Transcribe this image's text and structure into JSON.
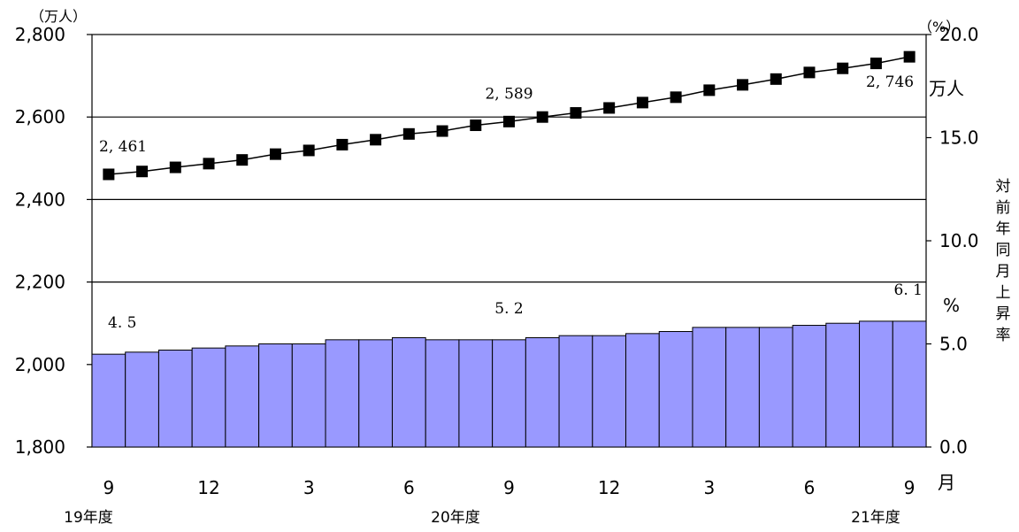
{
  "chart_data": {
    "type": "bar+line",
    "x_labels": [
      "9",
      "12",
      "3",
      "6",
      "9",
      "12",
      "3",
      "6",
      "9"
    ],
    "x_unit": "月",
    "fiscal_year_labels": [
      "19年度",
      "20年度",
      "21年度"
    ],
    "left_axis": {
      "unit": "（万人）",
      "ticks": [
        "1,800",
        "2,000",
        "2,200",
        "2,400",
        "2,600",
        "2,800"
      ],
      "range": [
        1800,
        2800
      ]
    },
    "right_axis": {
      "unit": "（%）",
      "ticks": [
        "0.0",
        "5.0",
        "10.0",
        "15.0",
        "20.0"
      ],
      "range": [
        0,
        20
      ],
      "title": "対前年同月上昇率",
      "side_unit": "%"
    },
    "line_series": {
      "values": [
        2461,
        2468,
        2478,
        2487,
        2496,
        2510,
        2519,
        2533,
        2545,
        2559,
        2566,
        2580,
        2589,
        2600,
        2610,
        2622,
        2635,
        2648,
        2665,
        2678,
        2692,
        2708,
        2718,
        2730,
        2746
      ],
      "labels": [
        {
          "index": 0,
          "text": "2, 461"
        },
        {
          "index": 12,
          "text": "2, 589"
        },
        {
          "index": 24,
          "text": "2, 746"
        }
      ],
      "end_unit": "万人"
    },
    "bar_series": {
      "values": [
        4.5,
        4.6,
        4.7,
        4.8,
        4.9,
        5.0,
        5.0,
        5.2,
        5.2,
        5.3,
        5.2,
        5.2,
        5.2,
        5.3,
        5.4,
        5.4,
        5.5,
        5.6,
        5.8,
        5.8,
        5.8,
        5.9,
        6.0,
        6.1,
        6.1
      ],
      "labels": [
        {
          "index": 0,
          "text": "4. 5"
        },
        {
          "index": 12,
          "text": "5. 2"
        },
        {
          "index": 24,
          "text": "6. 1"
        }
      ]
    },
    "colors": {
      "bar": "#9999ff",
      "line": "#000000"
    },
    "gridlines": [
      2200,
      2400,
      2600
    ]
  }
}
